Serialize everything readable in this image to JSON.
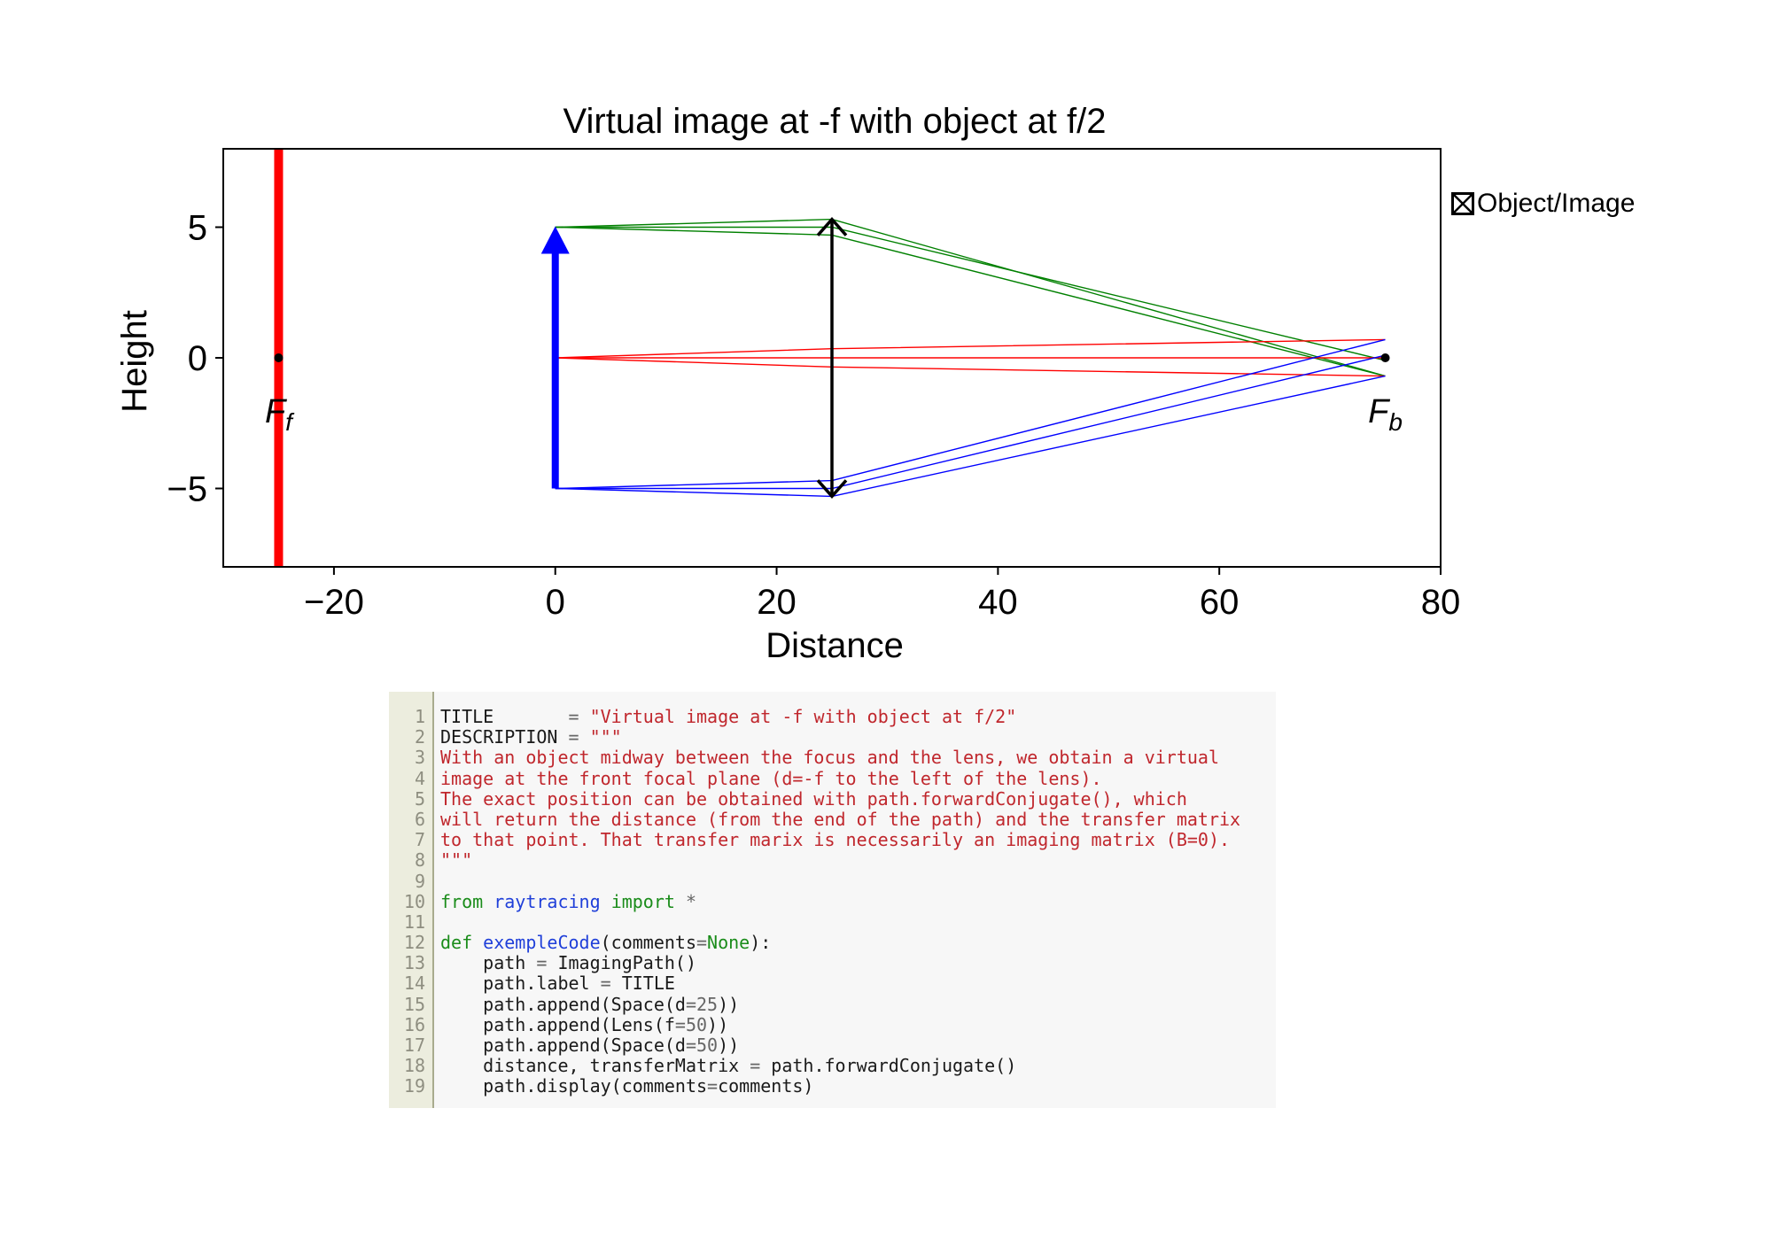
{
  "chart_data": {
    "type": "line",
    "title": "Virtual image at -f with object at f/2",
    "xlabel": "Distance",
    "ylabel": "Height",
    "xlim": [
      -30,
      80
    ],
    "ylim": [
      -8,
      8
    ],
    "xticks": [
      -20,
      0,
      20,
      40,
      60,
      80
    ],
    "yticks": [
      -5,
      0,
      5
    ],
    "grid": false,
    "legend": {
      "label": "Object/Image",
      "placement": "outside-right-top"
    },
    "object": {
      "x": 0,
      "y_from": -5,
      "y_to": 5,
      "color": "#0000ff"
    },
    "lens": {
      "x": 25,
      "y_from": -5.3,
      "y_to": 5.3,
      "color": "#000000"
    },
    "aperture_stop": {
      "x": -25,
      "y_from": -8,
      "y_to": 8,
      "color": "#ff0000"
    },
    "focal_points": [
      {
        "label": "F",
        "sub": "f",
        "x": -25,
        "y": 0
      },
      {
        "label": "F",
        "sub": "b",
        "x": 75,
        "y": 0
      }
    ],
    "series": [
      {
        "color": "#008000",
        "x": [
          0,
          25,
          75
        ],
        "y": [
          5,
          5.3,
          -0.7
        ]
      },
      {
        "color": "#008000",
        "x": [
          0,
          25,
          75
        ],
        "y": [
          5,
          5.0,
          -0.1
        ]
      },
      {
        "color": "#008000",
        "x": [
          0,
          25,
          75
        ],
        "y": [
          5,
          4.7,
          -0.7
        ]
      },
      {
        "color": "#ff0000",
        "x": [
          0,
          25,
          75
        ],
        "y": [
          0,
          0.35,
          0.7
        ]
      },
      {
        "color": "#ff0000",
        "x": [
          0,
          25,
          75
        ],
        "y": [
          0,
          0.0,
          0.0
        ]
      },
      {
        "color": "#ff0000",
        "x": [
          0,
          25,
          75
        ],
        "y": [
          0,
          -0.35,
          -0.7
        ]
      },
      {
        "color": "#0000ff",
        "x": [
          0,
          25,
          75
        ],
        "y": [
          -5,
          -4.7,
          0.7
        ]
      },
      {
        "color": "#0000ff",
        "x": [
          0,
          25,
          75
        ],
        "y": [
          -5,
          -5.0,
          0.1
        ]
      },
      {
        "color": "#0000ff",
        "x": [
          0,
          25,
          75
        ],
        "y": [
          -5,
          -5.3,
          -0.7
        ]
      }
    ]
  },
  "code": {
    "lines": [
      [
        [
          "plain",
          "TITLE       "
        ],
        [
          "op",
          "="
        ],
        [
          "plain",
          " "
        ],
        [
          "str",
          "\"Virtual image at -f with object at f/2\""
        ]
      ],
      [
        [
          "plain",
          "DESCRIPTION "
        ],
        [
          "op",
          "="
        ],
        [
          "plain",
          " "
        ],
        [
          "str",
          "\"\"\""
        ]
      ],
      [
        [
          "str",
          "With an object midway between the focus and the lens, we obtain a virtual"
        ]
      ],
      [
        [
          "str",
          "image at the front focal plane (d=-f to the left of the lens)."
        ]
      ],
      [
        [
          "str",
          "The exact position can be obtained with path.forwardConjugate(), which"
        ]
      ],
      [
        [
          "str",
          "will return the distance (from the end of the path) and the transfer matrix"
        ]
      ],
      [
        [
          "str",
          "to that point. That transfer marix is necessarily an imaging matrix (B=0)."
        ]
      ],
      [
        [
          "str",
          "\"\"\""
        ]
      ],
      [],
      [
        [
          "kw",
          "from"
        ],
        [
          "plain",
          " "
        ],
        [
          "name",
          "raytracing"
        ],
        [
          "plain",
          " "
        ],
        [
          "kw",
          "import"
        ],
        [
          "plain",
          " "
        ],
        [
          "op",
          "*"
        ]
      ],
      [],
      [
        [
          "kw",
          "def"
        ],
        [
          "plain",
          " "
        ],
        [
          "name",
          "exempleCode"
        ],
        [
          "plain",
          "(comments"
        ],
        [
          "op",
          "="
        ],
        [
          "kw",
          "None"
        ],
        [
          "plain",
          "):"
        ]
      ],
      [
        [
          "plain",
          "    path "
        ],
        [
          "op",
          "="
        ],
        [
          "plain",
          " ImagingPath()"
        ]
      ],
      [
        [
          "plain",
          "    path.label "
        ],
        [
          "op",
          "="
        ],
        [
          "plain",
          " TITLE"
        ]
      ],
      [
        [
          "plain",
          "    path.append(Space(d"
        ],
        [
          "op",
          "="
        ],
        [
          "num",
          "25"
        ],
        [
          "plain",
          "))"
        ]
      ],
      [
        [
          "plain",
          "    path.append(Lens(f"
        ],
        [
          "op",
          "="
        ],
        [
          "num",
          "50"
        ],
        [
          "plain",
          "))"
        ]
      ],
      [
        [
          "plain",
          "    path.append(Space(d"
        ],
        [
          "op",
          "="
        ],
        [
          "num",
          "50"
        ],
        [
          "plain",
          "))"
        ]
      ],
      [
        [
          "plain",
          "    distance, transferMatrix "
        ],
        [
          "op",
          "="
        ],
        [
          "plain",
          " path.forwardConjugate()"
        ]
      ],
      [
        [
          "plain",
          "    path.display(comments"
        ],
        [
          "op",
          "="
        ],
        [
          "plain",
          "comments)"
        ]
      ]
    ]
  }
}
